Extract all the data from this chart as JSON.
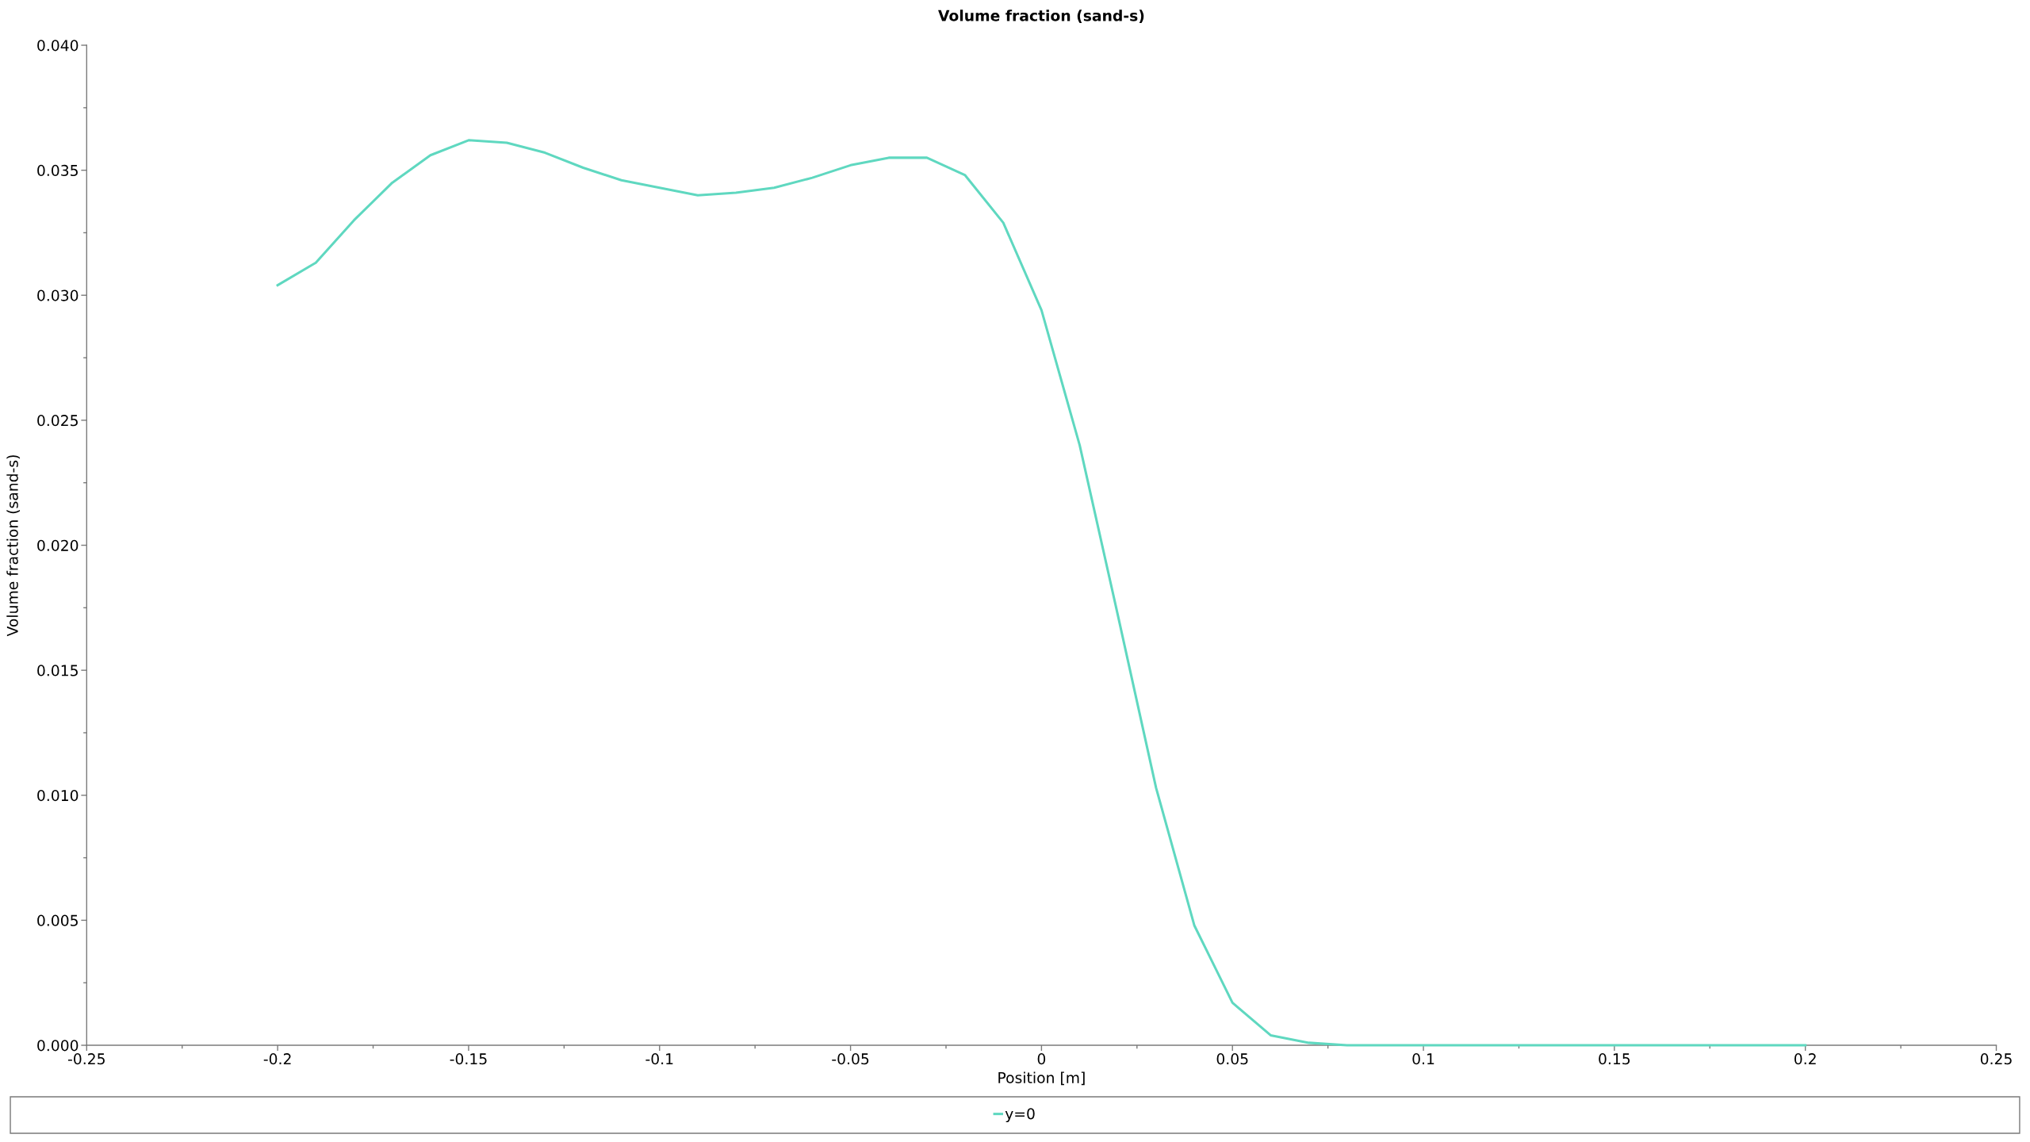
{
  "chart_data": {
    "type": "line",
    "title": "Volume fraction (sand-s)",
    "xlabel": "Position [m]",
    "ylabel": "Volume fraction (sand-s)",
    "x": [
      -0.2,
      -0.19,
      -0.18,
      -0.17,
      -0.16,
      -0.15,
      -0.14,
      -0.13,
      -0.12,
      -0.11,
      -0.1,
      -0.09,
      -0.08,
      -0.07,
      -0.06,
      -0.05,
      -0.04,
      -0.03,
      -0.02,
      -0.01,
      0,
      0.01,
      0.02,
      0.03,
      0.04,
      0.05,
      0.06,
      0.07,
      0.08,
      0.09,
      0.1,
      0.11,
      0.12,
      0.13,
      0.14,
      0.15,
      0.16,
      0.17,
      0.18,
      0.19,
      0.2
    ],
    "series": [
      {
        "name": "y=0",
        "color": "#5fd8c0",
        "values": [
          0.0304,
          0.0313,
          0.033,
          0.0345,
          0.0356,
          0.0362,
          0.0361,
          0.0357,
          0.0351,
          0.0346,
          0.0343,
          0.034,
          0.0341,
          0.0343,
          0.0347,
          0.0352,
          0.0355,
          0.0355,
          0.0348,
          0.0329,
          0.0294,
          0.024,
          0.0172,
          0.0103,
          0.0048,
          0.0017,
          0.0004,
          0.0001,
          0,
          0,
          0,
          0,
          0,
          0,
          0,
          0,
          0,
          0,
          0,
          0,
          0
        ]
      }
    ],
    "xlim": [
      -0.25,
      0.25
    ],
    "ylim": [
      0,
      0.04
    ],
    "xticks": [
      -0.25,
      -0.2,
      -0.15,
      -0.1,
      -0.05,
      0,
      0.05,
      0.1,
      0.15,
      0.2,
      0.25
    ],
    "yticks": [
      {
        "value": 0,
        "label": "0.000"
      },
      {
        "value": 0.005,
        "label": "0.005"
      },
      {
        "value": 0.01,
        "label": "0.010"
      },
      {
        "value": 0.015,
        "label": "0.015"
      },
      {
        "value": 0.02,
        "label": "0.020"
      },
      {
        "value": 0.025,
        "label": "0.025"
      },
      {
        "value": 0.03,
        "label": "0.030"
      },
      {
        "value": 0.035,
        "label": "0.035"
      },
      {
        "value": 0.04,
        "label": "0.040"
      }
    ],
    "legend": "bottom"
  }
}
